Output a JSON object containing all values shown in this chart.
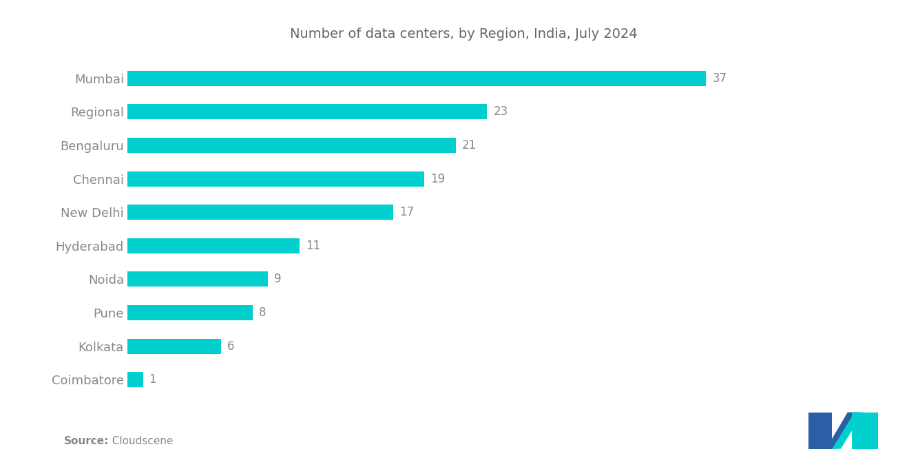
{
  "title": "Number of data centers, by Region, India, July 2024",
  "categories": [
    "Coimbatore",
    "Kolkata",
    "Pune",
    "Noida",
    "Hyderabad",
    "New Delhi",
    "Chennai",
    "Bengaluru",
    "Regional",
    "Mumbai"
  ],
  "values": [
    1,
    6,
    8,
    9,
    11,
    17,
    19,
    21,
    23,
    37
  ],
  "bar_color": "#00CFCE",
  "label_color": "#888888",
  "title_color": "#666666",
  "source_bold": "Source:",
  "source_normal": "  Cloudscene",
  "background_color": "#FFFFFF",
  "bar_height": 0.45,
  "xlim": [
    0,
    43
  ],
  "title_fontsize": 14,
  "label_fontsize": 13,
  "value_fontsize": 12,
  "source_fontsize": 11,
  "logo_dark_color": "#2B5FA5",
  "logo_teal_color": "#00CFCE"
}
